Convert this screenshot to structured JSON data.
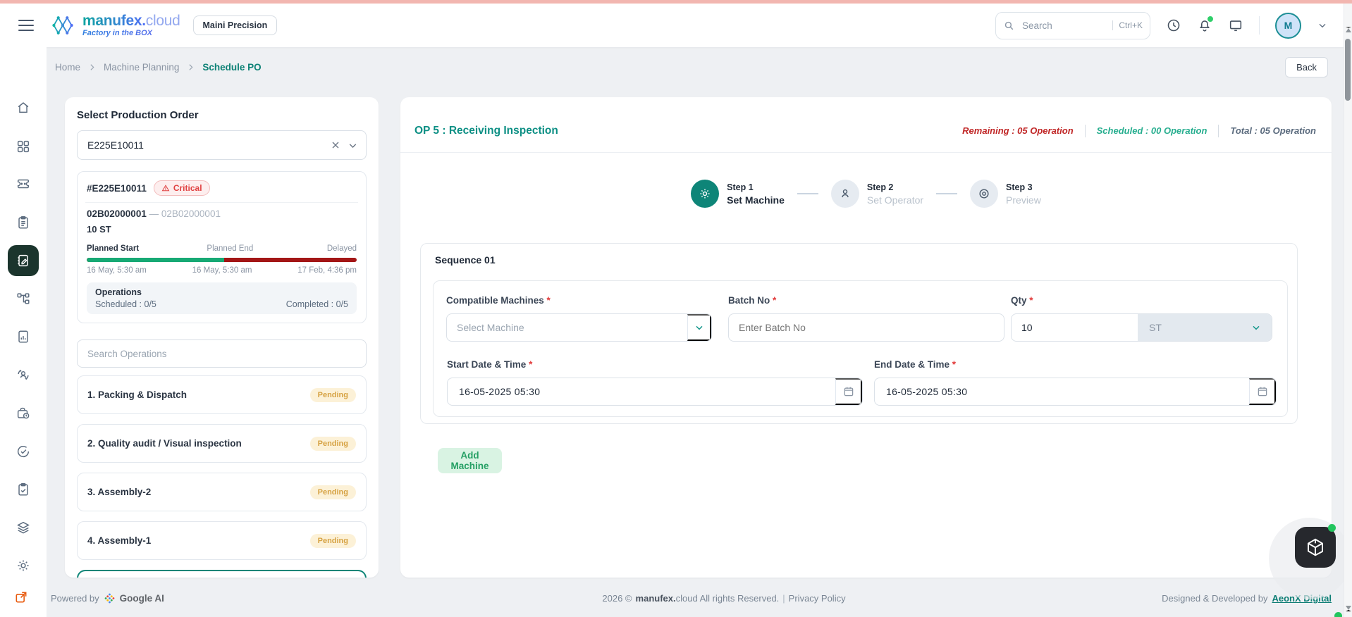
{
  "header": {
    "brand_bold": "manufex.",
    "brand_light": "cloud",
    "tagline": "Factory in the BOX",
    "tenant": "Maini Precision",
    "search_placeholder": "Search",
    "search_shortcut": "Ctrl+K",
    "avatar_initial": "M"
  },
  "breadcrumb": {
    "home": "Home",
    "section": "Machine Planning",
    "current": "Schedule PO",
    "back": "Back"
  },
  "po_panel": {
    "title": "Select Production Order",
    "po_value": "E225E10011",
    "card": {
      "po_number": "#E225E10011",
      "severity": "Critical",
      "code_primary": "02B02000001",
      "code_separator": "—",
      "code_secondary": "02B02000001",
      "quantity": "10 ST",
      "planned_start_label": "Planned Start",
      "planned_end_label": "Planned End",
      "delayed_label": "Delayed",
      "planned_start": "16 May, 5:30 am",
      "planned_end": "16 May, 5:30 am",
      "delayed_at": "17 Feb, 4:36 pm",
      "progress_green_pct": 51,
      "operations_title": "Operations",
      "scheduled_text": "Scheduled : 0/5",
      "completed_text": "Completed : 0/5"
    },
    "search_placeholder": "Search Operations",
    "operations": [
      {
        "label": "1. Packing & Dispatch",
        "status": "Pending"
      },
      {
        "label": "2. Quality audit / Visual inspection",
        "status": "Pending"
      },
      {
        "label": "3. Assembly-2",
        "status": "Pending"
      },
      {
        "label": "4. Assembly-1",
        "status": "Pending"
      }
    ]
  },
  "main": {
    "title": "OP 5 : Receiving Inspection",
    "stats": {
      "remaining": "Remaining : 05 Operation",
      "scheduled": "Scheduled : 00 Operation",
      "total": "Total : 05 Operation"
    },
    "steps": [
      {
        "step": "Step 1",
        "label": "Set Machine"
      },
      {
        "step": "Step 2",
        "label": "Set Operator"
      },
      {
        "step": "Step 3",
        "label": "Preview"
      }
    ],
    "sequence_title": "Sequence 01",
    "required_mark": "*",
    "fields": {
      "machines_label": "Compatible Machines",
      "machines_placeholder": "Select Machine",
      "batch_label": "Batch No",
      "batch_placeholder": "Enter Batch No",
      "qty_label": "Qty",
      "qty_value": "10",
      "qty_unit": "ST",
      "start_label": "Start Date & Time",
      "start_value": "16-05-2025 05:30",
      "end_label": "End Date & Time",
      "end_value": "16-05-2025 05:30"
    },
    "add_machine": "Add Machine"
  },
  "footer": {
    "powered_by": "Powered by",
    "powered_brand": "Google AI",
    "copyright_prefix": "2026 ©",
    "brand_bold": "manufex.",
    "copyright_suffix": "cloud All rights Reserved.",
    "divider": "|",
    "privacy": "Privacy Policy",
    "designed_by": "Designed & Developed by",
    "designed_brand": "AeonX Digital"
  },
  "colors": {
    "brand_teal": "#0d9488",
    "active_nav": "#1b352d",
    "critical_red": "#e04141",
    "pending_amber": "#d6a243",
    "progress_green": "#17a974",
    "progress_red": "#a31616",
    "scheduled_green": "#27ae8f",
    "remaining_red": "#c02626"
  }
}
